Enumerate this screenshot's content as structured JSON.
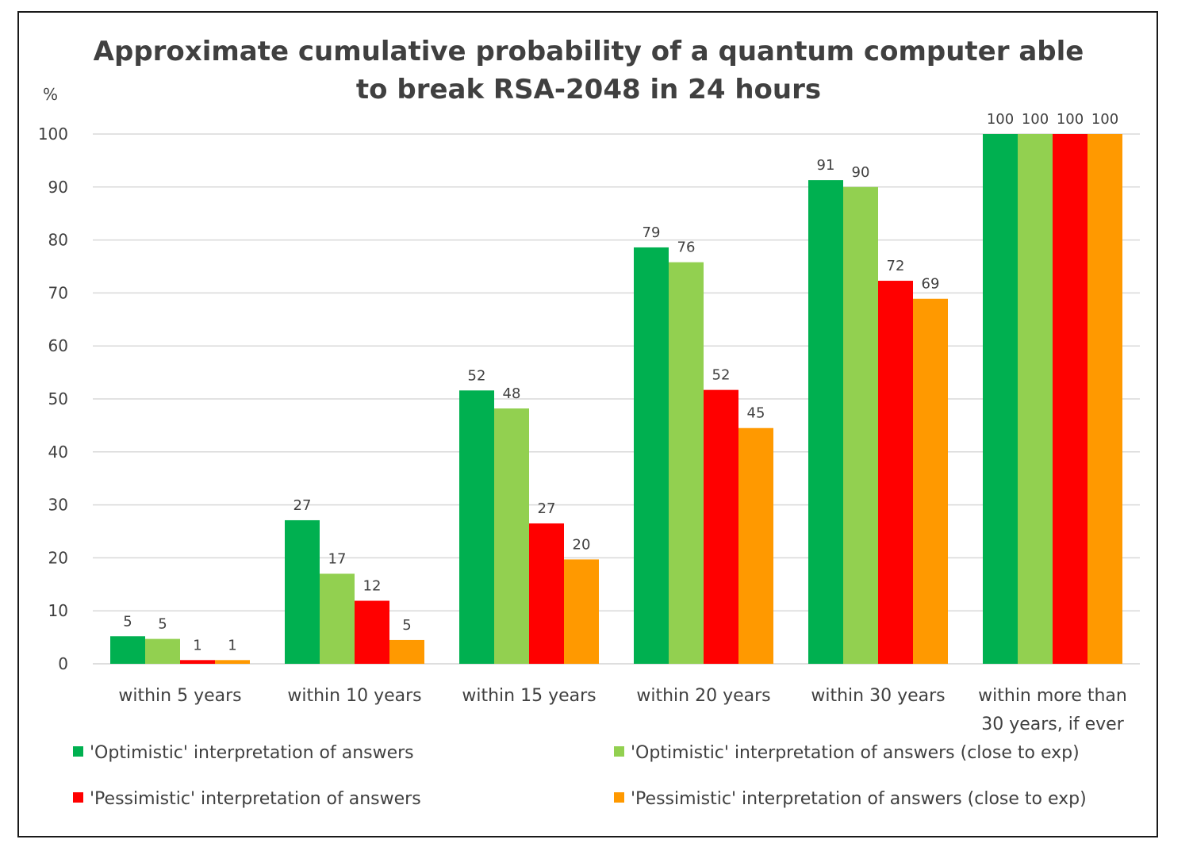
{
  "chart_data": {
    "type": "bar",
    "title_lines": [
      "Approximate cumulative probability of a quantum computer able",
      "to break RSA-2048 in 24 hours"
    ],
    "ylabel": "%",
    "xlabel": "",
    "ylim": [
      0,
      100
    ],
    "yticks": [
      0,
      10,
      20,
      30,
      40,
      50,
      60,
      70,
      80,
      90,
      100
    ],
    "grid": true,
    "legend_position": "bottom",
    "categories": [
      [
        "within 5 years"
      ],
      [
        "within 10 years"
      ],
      [
        "within 15 years"
      ],
      [
        "within 20 years"
      ],
      [
        "within 30 years"
      ],
      [
        "within more than",
        "30 years, if ever"
      ]
    ],
    "series": [
      {
        "name": "'Optimistic' interpretation of answers",
        "color": "#00b050",
        "values": [
          5.2,
          27.1,
          51.6,
          78.6,
          91.3,
          100
        ],
        "labels": [
          "5",
          "27",
          "52",
          "79",
          "91",
          "100"
        ]
      },
      {
        "name": "'Optimistic' interpretation of answers (close to exp)",
        "color": "#92d050",
        "values": [
          4.7,
          17.0,
          48.2,
          75.8,
          90.0,
          100
        ],
        "labels": [
          "5",
          "17",
          "48",
          "76",
          "90",
          "100"
        ]
      },
      {
        "name": "'Pessimistic' interpretation of answers",
        "color": "#ff0000",
        "values": [
          0.7,
          11.9,
          26.5,
          51.7,
          72.3,
          100
        ],
        "labels": [
          "1",
          "12",
          "27",
          "52",
          "72",
          "100"
        ]
      },
      {
        "name": "'Pessimistic' interpretation of answers (close to exp)",
        "color": "#ff9900",
        "values": [
          0.7,
          4.5,
          19.7,
          44.5,
          68.9,
          100
        ],
        "labels": [
          "1",
          "5",
          "20",
          "45",
          "69",
          "100"
        ]
      }
    ]
  }
}
